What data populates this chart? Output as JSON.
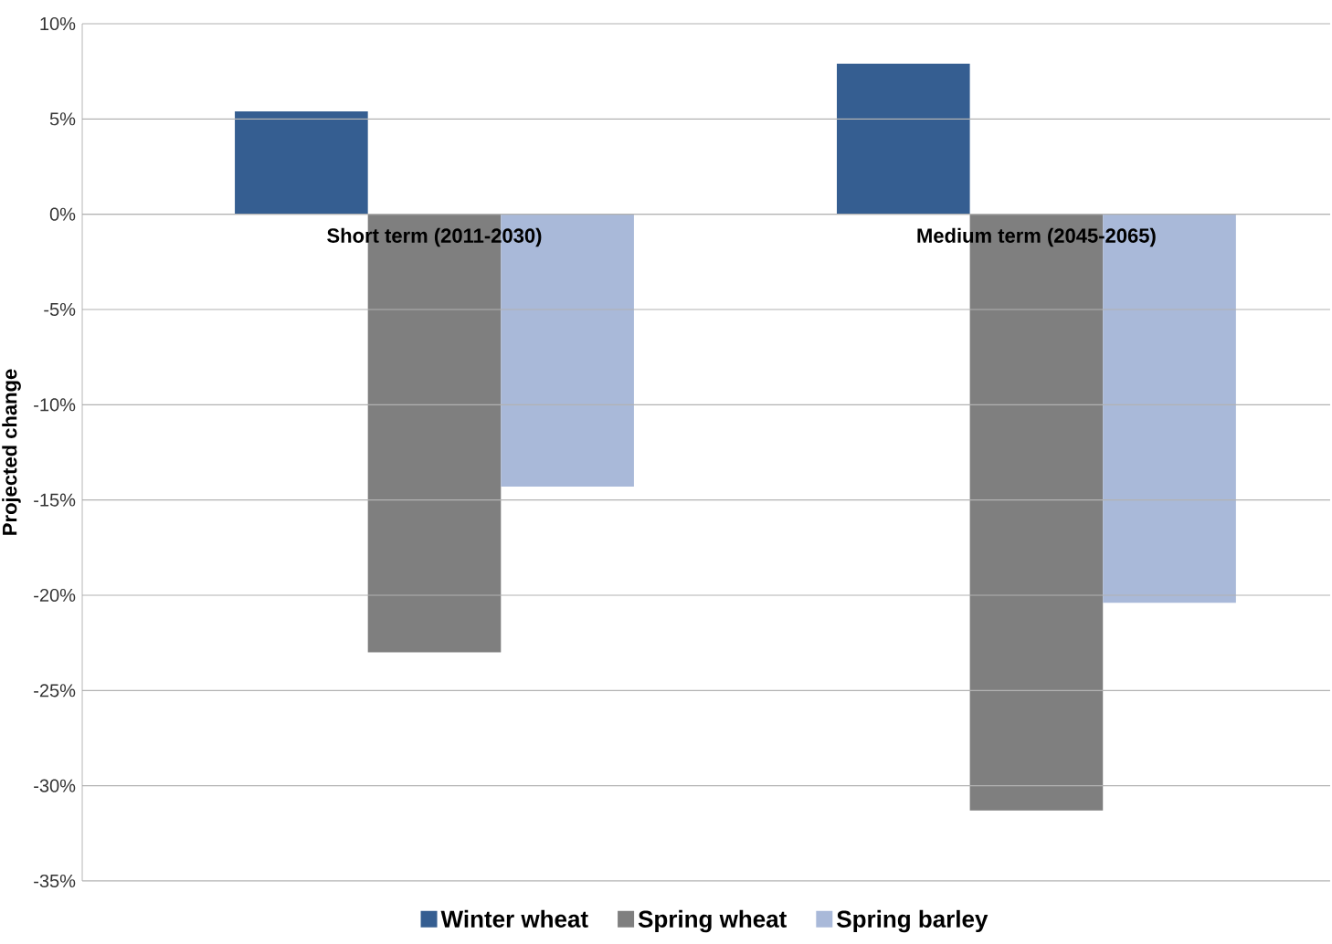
{
  "chart_data": {
    "type": "bar",
    "ylabel": "Projected change",
    "categories": [
      "Short term (2011-2030)",
      "Medium term (2045-2065)"
    ],
    "series": [
      {
        "name": "Winter wheat",
        "color": "#355e91",
        "values": [
          5.4,
          7.9
        ]
      },
      {
        "name": "Spring wheat",
        "color": "#7f7f7f",
        "values": [
          -23.0,
          -31.3
        ]
      },
      {
        "name": "Spring barley",
        "color": "#a9b9d9",
        "values": [
          -14.3,
          -20.4
        ]
      }
    ],
    "ylim": [
      -35,
      10
    ],
    "yticks": [
      {
        "value": -35,
        "label": "-35%"
      },
      {
        "value": -30,
        "label": "-30%"
      },
      {
        "value": -25,
        "label": "-25%"
      },
      {
        "value": -20,
        "label": "-20%"
      },
      {
        "value": -15,
        "label": "-15%"
      },
      {
        "value": -10,
        "label": "-10%"
      },
      {
        "value": -5,
        "label": "-5%"
      },
      {
        "value": 0,
        "label": "0%"
      },
      {
        "value": 5,
        "label": "5%"
      },
      {
        "value": 10,
        "label": "10%"
      }
    ],
    "grid": "y",
    "legend": "bottom"
  }
}
